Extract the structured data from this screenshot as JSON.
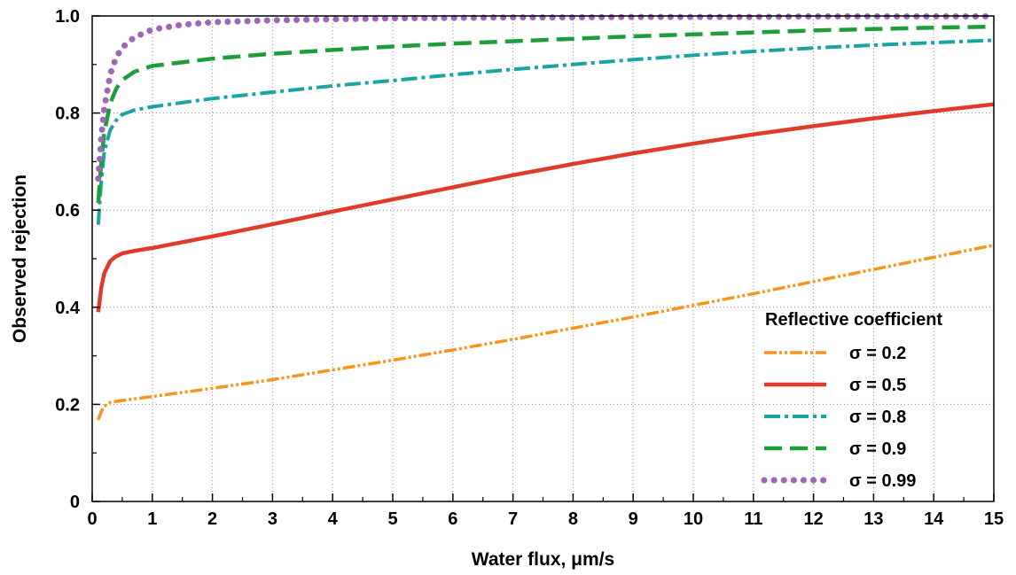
{
  "chart_data": {
    "type": "line",
    "xlabel": "Water flux, μm/s",
    "ylabel": "Observed rejection",
    "xlim": [
      0,
      15
    ],
    "ylim": [
      0,
      1.0
    ],
    "x_ticks": [
      "0",
      "1",
      "2",
      "3",
      "4",
      "5",
      "6",
      "7",
      "8",
      "9",
      "10",
      "11",
      "12",
      "13",
      "14",
      "15"
    ],
    "y_ticks": [
      "0",
      "0.2",
      "0.4",
      "0.6",
      "0.8",
      "1.0"
    ],
    "grid": true,
    "legend": {
      "title": "Reflective coefficient",
      "placement": "right-middle"
    },
    "series": [
      {
        "name": "σ = 0.2",
        "color": "#f7941d",
        "style": "dash-dot-dot",
        "points": [
          [
            0.1,
            0.168
          ],
          [
            0.15,
            0.185
          ],
          [
            0.2,
            0.196
          ],
          [
            0.3,
            0.204
          ],
          [
            0.5,
            0.208
          ],
          [
            1,
            0.216
          ],
          [
            2,
            0.233
          ],
          [
            3,
            0.251
          ],
          [
            4,
            0.271
          ],
          [
            5,
            0.291
          ],
          [
            6,
            0.312
          ],
          [
            7,
            0.334
          ],
          [
            8,
            0.357
          ],
          [
            9,
            0.38
          ],
          [
            10,
            0.404
          ],
          [
            11,
            0.428
          ],
          [
            12,
            0.453
          ],
          [
            13,
            0.478
          ],
          [
            14,
            0.503
          ],
          [
            15,
            0.528
          ]
        ]
      },
      {
        "name": "σ = 0.5",
        "color": "#e03a2c",
        "style": "solid",
        "points": [
          [
            0.1,
            0.39
          ],
          [
            0.15,
            0.44
          ],
          [
            0.2,
            0.47
          ],
          [
            0.3,
            0.495
          ],
          [
            0.4,
            0.505
          ],
          [
            0.5,
            0.511
          ],
          [
            0.7,
            0.516
          ],
          [
            1,
            0.522
          ],
          [
            2,
            0.546
          ],
          [
            3,
            0.571
          ],
          [
            4,
            0.597
          ],
          [
            5,
            0.622
          ],
          [
            6,
            0.647
          ],
          [
            7,
            0.672
          ],
          [
            8,
            0.695
          ],
          [
            9,
            0.717
          ],
          [
            10,
            0.737
          ],
          [
            11,
            0.756
          ],
          [
            12,
            0.773
          ],
          [
            13,
            0.789
          ],
          [
            14,
            0.804
          ],
          [
            15,
            0.818
          ]
        ]
      },
      {
        "name": "σ = 0.8",
        "color": "#1aa3a3",
        "style": "dash-dot",
        "points": [
          [
            0.1,
            0.57
          ],
          [
            0.15,
            0.66
          ],
          [
            0.2,
            0.72
          ],
          [
            0.3,
            0.765
          ],
          [
            0.4,
            0.785
          ],
          [
            0.5,
            0.797
          ],
          [
            0.7,
            0.806
          ],
          [
            1,
            0.813
          ],
          [
            2,
            0.83
          ],
          [
            3,
            0.843
          ],
          [
            4,
            0.856
          ],
          [
            5,
            0.867
          ],
          [
            6,
            0.879
          ],
          [
            7,
            0.89
          ],
          [
            8,
            0.9
          ],
          [
            9,
            0.91
          ],
          [
            10,
            0.919
          ],
          [
            11,
            0.927
          ],
          [
            12,
            0.934
          ],
          [
            13,
            0.94
          ],
          [
            14,
            0.945
          ],
          [
            15,
            0.95
          ]
        ]
      },
      {
        "name": "σ = 0.9",
        "color": "#1e9e3a",
        "style": "dashed",
        "points": [
          [
            0.1,
            0.615
          ],
          [
            0.15,
            0.7
          ],
          [
            0.2,
            0.76
          ],
          [
            0.3,
            0.82
          ],
          [
            0.4,
            0.85
          ],
          [
            0.5,
            0.868
          ],
          [
            0.7,
            0.885
          ],
          [
            1,
            0.897
          ],
          [
            2,
            0.912
          ],
          [
            3,
            0.922
          ],
          [
            4,
            0.93
          ],
          [
            5,
            0.937
          ],
          [
            6,
            0.943
          ],
          [
            7,
            0.948
          ],
          [
            8,
            0.953
          ],
          [
            9,
            0.958
          ],
          [
            10,
            0.962
          ],
          [
            11,
            0.966
          ],
          [
            12,
            0.97
          ],
          [
            13,
            0.973
          ],
          [
            14,
            0.976
          ],
          [
            15,
            0.978
          ]
        ]
      },
      {
        "name": "σ = 0.99",
        "color": "#a066b8",
        "style": "dotted",
        "points": [
          [
            0.1,
            0.665
          ],
          [
            0.15,
            0.75
          ],
          [
            0.2,
            0.81
          ],
          [
            0.3,
            0.88
          ],
          [
            0.4,
            0.915
          ],
          [
            0.5,
            0.935
          ],
          [
            0.7,
            0.956
          ],
          [
            1,
            0.972
          ],
          [
            1.5,
            0.982
          ],
          [
            2,
            0.987
          ],
          [
            3,
            0.991
          ],
          [
            4,
            0.993
          ],
          [
            5,
            0.995
          ],
          [
            6,
            0.996
          ],
          [
            7,
            0.997
          ],
          [
            8,
            0.997
          ],
          [
            9,
            0.998
          ],
          [
            10,
            0.998
          ],
          [
            11,
            0.998
          ],
          [
            12,
            0.999
          ],
          [
            13,
            0.999
          ],
          [
            14,
            0.999
          ],
          [
            15,
            0.999
          ]
        ]
      }
    ]
  }
}
